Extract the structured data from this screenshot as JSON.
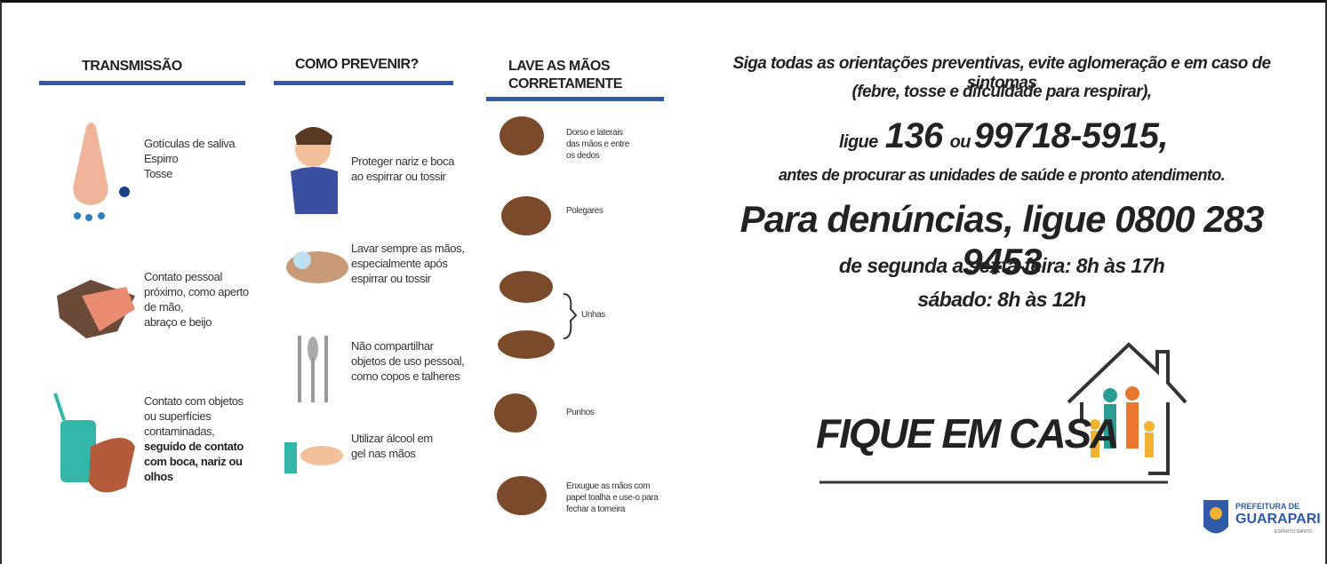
{
  "sections": [
    {
      "title": [
        "TRANSMISSÃO"
      ],
      "items": [
        {
          "lines": [
            "Gotículas de saliva",
            "Espirro",
            "Tosse"
          ],
          "bold_lines": []
        },
        {
          "lines": [
            "Contato pessoal",
            "próximo, como aperto",
            "de mão,",
            "abraço e beijo"
          ],
          "bold_lines": []
        },
        {
          "lines": [
            "Contato com objetos",
            "ou superfícies",
            "contaminadas,"
          ],
          "bold_lines": [
            "seguido de contato",
            "com boca, nariz ou",
            "olhos"
          ]
        }
      ]
    },
    {
      "title": [
        "COMO PREVENIR?"
      ],
      "items": [
        {
          "lines": [
            "Proteger nariz e boca",
            "ao espirrar ou tossir"
          ],
          "bold_lines": []
        },
        {
          "lines": [
            "Lavar sempre as mãos,",
            "especialmente após",
            "espirrar ou tossir"
          ],
          "bold_lines": []
        },
        {
          "lines": [
            "Não compartilhar",
            "objetos de uso pessoal,",
            "como copos e talheres"
          ],
          "bold_lines": []
        },
        {
          "lines": [
            "Utilizar álcool em",
            "gel nas mãos"
          ],
          "bold_lines": []
        }
      ]
    },
    {
      "title": [
        "LAVE AS MÃOS",
        "CORRETAMENTE"
      ],
      "items": [
        {
          "lines": [
            "Dorso e laterais",
            "das mãos e entre",
            "os dedos"
          ],
          "bold_lines": []
        },
        {
          "lines": [
            "Polegares"
          ],
          "bold_lines": []
        },
        {
          "lines": [
            "Unhas"
          ],
          "bold_lines": []
        },
        {
          "lines": [
            "Punhos"
          ],
          "bold_lines": []
        },
        {
          "lines": [
            "Enxugue as mãos com",
            "papel toalha e use-o para",
            "fechar a torneira"
          ],
          "bold_lines": []
        }
      ]
    }
  ],
  "message": {
    "line1": "Siga todas as orientações preventivas, evite aglomeração e em caso de sintomas",
    "line2": "(febre, tosse e difculdade para respirar),",
    "call": [
      "ligue",
      "136",
      "ou",
      "99718-5915",
      ","
    ],
    "line4": "antes de procurar as unidades de saúde e pronto atendimento.",
    "complaints": "Para denúncias, ligue 0800 283 9453",
    "hours": [
      "de segunda a sexta-feira: 8h às 17h",
      "sábado: 8h às 12h"
    ],
    "slogan": "FIQUE EM CASA"
  },
  "logo": {
    "line1": "PREFEITURA DE",
    "line2": "GUARAPARI",
    "line3": "ESPÍRITO SANTO"
  }
}
